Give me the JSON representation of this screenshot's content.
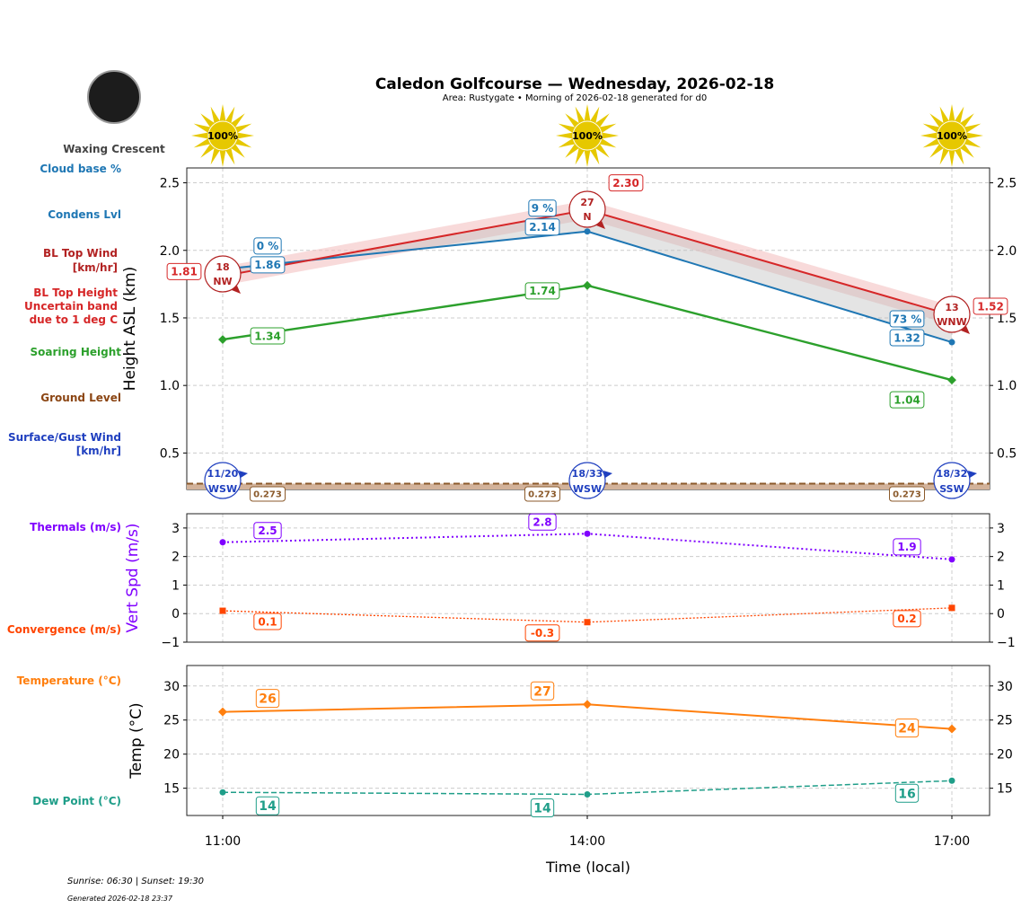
{
  "title": "Caledon Golfcourse — Wednesday, 2026-02-18",
  "subtitle": "Area: Rustygate • Morning of 2026-02-18 generated for d0",
  "moon_phase": "Waxing Crescent",
  "footer": {
    "sun": "Sunrise: 06:30 | Sunset: 19:30",
    "generated": "Generated 2026-02-18 23:37"
  },
  "side_labels": {
    "cloud_base": "Cloud base %",
    "condens": "Condens Lvl",
    "bl_wind": [
      "BL Top Wind",
      "[km/hr]"
    ],
    "bl_height": [
      "BL Top Height",
      "Uncertain band",
      "due to 1 deg C"
    ],
    "soaring": "Soaring Height",
    "ground": "Ground Level",
    "surface_wind": [
      "Surface/Gust Wind",
      "[km/hr]"
    ],
    "thermals": "Thermals (m/s)",
    "convergence": "Convergence (m/s)",
    "temperature": "Temperature (°C)",
    "dewpoint": "Dew Point (°C)"
  },
  "colors": {
    "cloud": "#1f77b4",
    "bl": "#d62728",
    "blwind": "#b22222",
    "soar": "#2ca02c",
    "ground": "#8b4513",
    "surface": "#1f3fbf",
    "thermal": "#8000ff",
    "conv": "#ff4500",
    "temp": "#ff7f0e",
    "dew": "#1f9e89",
    "sun": "#e6c800"
  },
  "chart_data": [
    {
      "type": "line",
      "ylabel": "Height ASL (km)",
      "ylim": [
        0.23,
        2.61
      ],
      "yticks": [
        0.5,
        1.0,
        1.5,
        2.0,
        2.5
      ],
      "grid": true,
      "x": [
        "11:00",
        "14:00",
        "17:00"
      ],
      "sun_percent": [
        "100%",
        "100%",
        "100%"
      ],
      "cloud_base_km": [
        1.86,
        2.14,
        1.32
      ],
      "cloud_base_labels": [
        "1.86",
        "2.14",
        "1.32"
      ],
      "cloud_cover": [
        "0 %",
        "9 %",
        "73 %"
      ],
      "bl_top_km": [
        1.81,
        2.3,
        1.52
      ],
      "bl_top_labels": [
        "1.81",
        "2.30",
        "1.52"
      ],
      "bl_uncertainty_km": 0.07,
      "bl_wind": [
        {
          "speed": "18",
          "dir": "NW"
        },
        {
          "speed": "27",
          "dir": "N"
        },
        {
          "speed": "13",
          "dir": "WNW"
        }
      ],
      "soaring_km": [
        1.34,
        1.74,
        1.04
      ],
      "soaring_labels": [
        "1.34",
        "1.74",
        "1.04"
      ],
      "ground_km": [
        0.273,
        0.273,
        0.273
      ],
      "ground_labels": [
        "0.273",
        "0.273",
        "0.273"
      ],
      "surface_wind": [
        {
          "speed": "11/20",
          "dir": "WSW"
        },
        {
          "speed": "18/33",
          "dir": "WSW"
        },
        {
          "speed": "18/32",
          "dir": "SSW"
        }
      ]
    },
    {
      "type": "line",
      "ylabel": "Vert Spd (m/s)",
      "ylim": [
        -1,
        3.5
      ],
      "yticks": [
        -1,
        0,
        1,
        2,
        3
      ],
      "grid": true,
      "thermals": [
        2.5,
        2.8,
        1.9
      ],
      "thermal_labels": [
        "2.5",
        "2.8",
        "1.9"
      ],
      "convergence": [
        0.1,
        -0.3,
        0.2
      ],
      "convergence_labels": [
        "0.1",
        "-0.3",
        "0.2"
      ]
    },
    {
      "type": "line",
      "ylabel": "Temp (°C)",
      "xlabel": "Time (local)",
      "ylim": [
        11,
        33
      ],
      "yticks": [
        15,
        20,
        25,
        30
      ],
      "grid": true,
      "x": [
        "11:00",
        "14:00",
        "17:00"
      ],
      "temperature": [
        26.2,
        27.3,
        23.7
      ],
      "temperature_labels": [
        "26",
        "27",
        "24"
      ],
      "dewpoint": [
        14.4,
        14.1,
        16.1
      ],
      "dewpoint_labels": [
        "14",
        "14",
        "16"
      ]
    }
  ]
}
